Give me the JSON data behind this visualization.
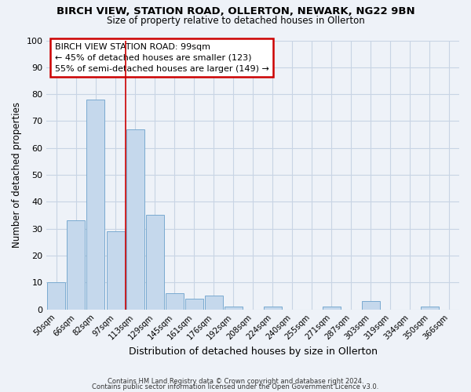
{
  "title1": "BIRCH VIEW, STATION ROAD, OLLERTON, NEWARK, NG22 9BN",
  "title2": "Size of property relative to detached houses in Ollerton",
  "xlabel": "Distribution of detached houses by size in Ollerton",
  "ylabel": "Number of detached properties",
  "bar_color": "#c5d8ec",
  "bar_edgecolor": "#7aaad0",
  "categories": [
    "50sqm",
    "66sqm",
    "82sqm",
    "97sqm",
    "113sqm",
    "129sqm",
    "145sqm",
    "161sqm",
    "176sqm",
    "192sqm",
    "208sqm",
    "224sqm",
    "240sqm",
    "255sqm",
    "271sqm",
    "287sqm",
    "303sqm",
    "319sqm",
    "334sqm",
    "350sqm",
    "366sqm"
  ],
  "values": [
    10,
    33,
    78,
    29,
    67,
    35,
    6,
    4,
    5,
    1,
    0,
    1,
    0,
    0,
    1,
    0,
    3,
    0,
    0,
    1,
    0
  ],
  "ylim": [
    0,
    100
  ],
  "yticks": [
    0,
    10,
    20,
    30,
    40,
    50,
    60,
    70,
    80,
    90,
    100
  ],
  "annotation_title": "BIRCH VIEW STATION ROAD: 99sqm",
  "annotation_line1": "← 45% of detached houses are smaller (123)",
  "annotation_line2": "55% of semi-detached houses are larger (149) →",
  "annotation_box_facecolor": "#ffffff",
  "annotation_box_edgecolor": "#cc0000",
  "marker_color": "#cc0000",
  "footer1": "Contains HM Land Registry data © Crown copyright and database right 2024.",
  "footer2": "Contains public sector information licensed under the Open Government Licence v3.0.",
  "grid_color": "#c8d4e4",
  "background_color": "#eef2f8"
}
